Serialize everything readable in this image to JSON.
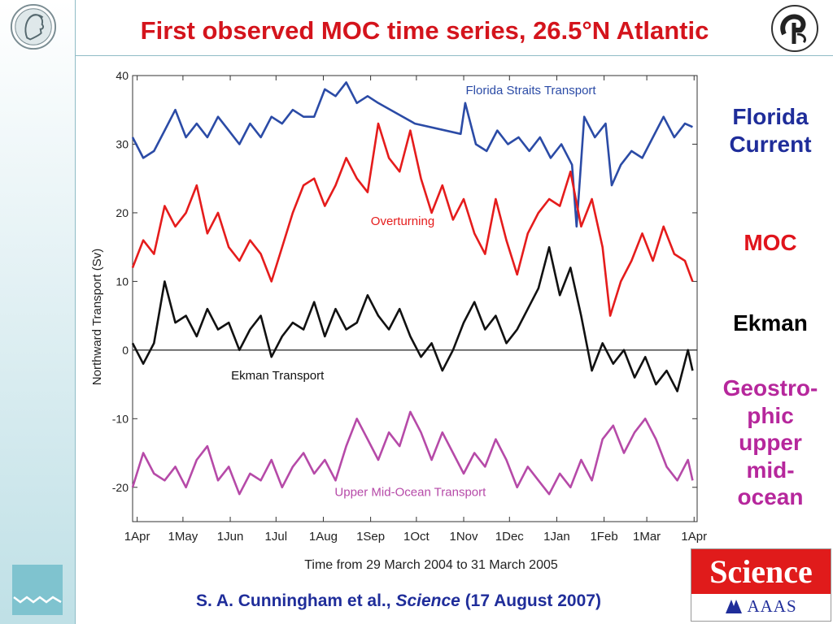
{
  "slide": {
    "title": "First observed MOC time series, 26.5°N Atlantic",
    "citation_authors": "S. A.  Cunningham et al.,",
    "citation_journal": "Science",
    "citation_date": "(17 August 2007)"
  },
  "side_labels": {
    "florida": [
      "Florida",
      "Current"
    ],
    "moc": "MOC",
    "ekman": "Ekman",
    "geostrophic": [
      "Geostro-",
      "phic",
      "upper",
      "mid-",
      "ocean"
    ]
  },
  "logos": {
    "left_top": "max-planck-minerva-logo",
    "left_bottom": "zmaw-logo",
    "right_top": "dfg-logo",
    "science_word": "Science",
    "aaas_word": "AAAS"
  },
  "colors": {
    "title": "#d4141c",
    "florida": "#2b4ba6",
    "moc": "#e51c1c",
    "ekman": "#111111",
    "geostrophic": "#b64aa8",
    "navy": "#1f2d9a"
  },
  "chart_data": {
    "type": "line",
    "xlabel": "Time from 29 March 2004 to 31 March 2005",
    "ylabel": "Northward Transport (Sv)",
    "ylim": [
      -25,
      40
    ],
    "yticks": [
      40,
      30,
      20,
      10,
      0,
      -10,
      -20
    ],
    "xlim": [
      "2004-03-29",
      "2005-04-03"
    ],
    "xticks": [
      {
        "date": "2004-04-01",
        "label": "1Apr"
      },
      {
        "date": "2004-05-01",
        "label": "1May"
      },
      {
        "date": "2004-06-01",
        "label": "1Jun"
      },
      {
        "date": "2004-07-01",
        "label": "1Jul"
      },
      {
        "date": "2004-08-01",
        "label": "1Aug"
      },
      {
        "date": "2004-09-01",
        "label": "1Sep"
      },
      {
        "date": "2004-10-01",
        "label": "1Oct"
      },
      {
        "date": "2004-11-01",
        "label": "1Nov"
      },
      {
        "date": "2004-12-01",
        "label": "1Dec"
      },
      {
        "date": "2005-01-01",
        "label": "1Jan"
      },
      {
        "date": "2005-02-01",
        "label": "1Feb"
      },
      {
        "date": "2005-03-01",
        "label": "1Mar"
      },
      {
        "date": "2005-04-01",
        "label": "1Apr"
      }
    ],
    "zero_line": true,
    "series": [
      {
        "name": "Florida Straits Transport",
        "color": "#2b4ba6",
        "points": [
          [
            "2004-03-29",
            31
          ],
          [
            "2004-04-05",
            28
          ],
          [
            "2004-04-12",
            29
          ],
          [
            "2004-04-19",
            32
          ],
          [
            "2004-04-26",
            35
          ],
          [
            "2004-05-03",
            31
          ],
          [
            "2004-05-10",
            33
          ],
          [
            "2004-05-17",
            31
          ],
          [
            "2004-05-24",
            34
          ],
          [
            "2004-05-31",
            32
          ],
          [
            "2004-06-07",
            30
          ],
          [
            "2004-06-14",
            33
          ],
          [
            "2004-06-21",
            31
          ],
          [
            "2004-06-28",
            34
          ],
          [
            "2004-07-05",
            33
          ],
          [
            "2004-07-12",
            35
          ],
          [
            "2004-07-19",
            34
          ],
          [
            "2004-07-26",
            34
          ],
          [
            "2004-08-02",
            38
          ],
          [
            "2004-08-09",
            37
          ],
          [
            "2004-08-16",
            39
          ],
          [
            "2004-08-23",
            36
          ],
          [
            "2004-08-30",
            37
          ],
          [
            "2004-09-06",
            36
          ],
          [
            "2004-09-30",
            33
          ],
          [
            "2004-10-30",
            31.5
          ],
          [
            "2004-11-02",
            36
          ],
          [
            "2004-11-09",
            30
          ],
          [
            "2004-11-16",
            29
          ],
          [
            "2004-11-23",
            32
          ],
          [
            "2004-11-30",
            30
          ],
          [
            "2004-12-07",
            31
          ],
          [
            "2004-12-14",
            29
          ],
          [
            "2004-12-21",
            31
          ],
          [
            "2004-12-28",
            28
          ],
          [
            "2005-01-04",
            30
          ],
          [
            "2005-01-11",
            27
          ],
          [
            "2005-01-14",
            18
          ],
          [
            "2005-01-19",
            34
          ],
          [
            "2005-01-26",
            31
          ],
          [
            "2005-02-02",
            33
          ],
          [
            "2005-02-06",
            24
          ],
          [
            "2005-02-12",
            27
          ],
          [
            "2005-02-19",
            29
          ],
          [
            "2005-02-26",
            28
          ],
          [
            "2005-03-05",
            31
          ],
          [
            "2005-03-12",
            34
          ],
          [
            "2005-03-19",
            31
          ],
          [
            "2005-03-26",
            33
          ],
          [
            "2005-03-31",
            32.5
          ]
        ]
      },
      {
        "name": "Overturning",
        "color": "#e51c1c",
        "points": [
          [
            "2004-03-29",
            12
          ],
          [
            "2004-04-05",
            16
          ],
          [
            "2004-04-12",
            14
          ],
          [
            "2004-04-19",
            21
          ],
          [
            "2004-04-26",
            18
          ],
          [
            "2004-05-03",
            20
          ],
          [
            "2004-05-10",
            24
          ],
          [
            "2004-05-17",
            17
          ],
          [
            "2004-05-24",
            20
          ],
          [
            "2004-05-31",
            15
          ],
          [
            "2004-06-07",
            13
          ],
          [
            "2004-06-14",
            16
          ],
          [
            "2004-06-21",
            14
          ],
          [
            "2004-06-28",
            10
          ],
          [
            "2004-07-05",
            15
          ],
          [
            "2004-07-12",
            20
          ],
          [
            "2004-07-19",
            24
          ],
          [
            "2004-07-26",
            25
          ],
          [
            "2004-08-02",
            21
          ],
          [
            "2004-08-09",
            24
          ],
          [
            "2004-08-16",
            28
          ],
          [
            "2004-08-23",
            25
          ],
          [
            "2004-08-30",
            23
          ],
          [
            "2004-09-06",
            33
          ],
          [
            "2004-09-13",
            28
          ],
          [
            "2004-09-20",
            26
          ],
          [
            "2004-09-27",
            32
          ],
          [
            "2004-10-04",
            25
          ],
          [
            "2004-10-11",
            20
          ],
          [
            "2004-10-18",
            24
          ],
          [
            "2004-10-25",
            19
          ],
          [
            "2004-11-01",
            22
          ],
          [
            "2004-11-08",
            17
          ],
          [
            "2004-11-15",
            14
          ],
          [
            "2004-11-22",
            22
          ],
          [
            "2004-11-29",
            16
          ],
          [
            "2004-12-06",
            11
          ],
          [
            "2004-12-13",
            17
          ],
          [
            "2004-12-20",
            20
          ],
          [
            "2004-12-27",
            22
          ],
          [
            "2005-01-03",
            21
          ],
          [
            "2005-01-10",
            26
          ],
          [
            "2005-01-17",
            18
          ],
          [
            "2005-01-24",
            22
          ],
          [
            "2005-01-31",
            15
          ],
          [
            "2005-02-05",
            5
          ],
          [
            "2005-02-12",
            10
          ],
          [
            "2005-02-19",
            13
          ],
          [
            "2005-02-26",
            17
          ],
          [
            "2005-03-05",
            13
          ],
          [
            "2005-03-12",
            18
          ],
          [
            "2005-03-19",
            14
          ],
          [
            "2005-03-26",
            13
          ],
          [
            "2005-03-31",
            10
          ]
        ]
      },
      {
        "name": "Ekman Transport",
        "color": "#111111",
        "points": [
          [
            "2004-03-29",
            1
          ],
          [
            "2004-04-05",
            -2
          ],
          [
            "2004-04-12",
            1
          ],
          [
            "2004-04-19",
            10
          ],
          [
            "2004-04-26",
            4
          ],
          [
            "2004-05-03",
            5
          ],
          [
            "2004-05-10",
            2
          ],
          [
            "2004-05-17",
            6
          ],
          [
            "2004-05-24",
            3
          ],
          [
            "2004-05-31",
            4
          ],
          [
            "2004-06-07",
            0
          ],
          [
            "2004-06-14",
            3
          ],
          [
            "2004-06-21",
            5
          ],
          [
            "2004-06-28",
            -1
          ],
          [
            "2004-07-05",
            2
          ],
          [
            "2004-07-12",
            4
          ],
          [
            "2004-07-19",
            3
          ],
          [
            "2004-07-26",
            7
          ],
          [
            "2004-08-02",
            2
          ],
          [
            "2004-08-09",
            6
          ],
          [
            "2004-08-16",
            3
          ],
          [
            "2004-08-23",
            4
          ],
          [
            "2004-08-30",
            8
          ],
          [
            "2004-09-06",
            5
          ],
          [
            "2004-09-13",
            3
          ],
          [
            "2004-09-20",
            6
          ],
          [
            "2004-09-27",
            2
          ],
          [
            "2004-10-04",
            -1
          ],
          [
            "2004-10-11",
            1
          ],
          [
            "2004-10-18",
            -3
          ],
          [
            "2004-10-25",
            0
          ],
          [
            "2004-11-01",
            4
          ],
          [
            "2004-11-08",
            7
          ],
          [
            "2004-11-15",
            3
          ],
          [
            "2004-11-22",
            5
          ],
          [
            "2004-11-29",
            1
          ],
          [
            "2004-12-06",
            3
          ],
          [
            "2004-12-13",
            6
          ],
          [
            "2004-12-20",
            9
          ],
          [
            "2004-12-27",
            15
          ],
          [
            "2005-01-03",
            8
          ],
          [
            "2005-01-10",
            12
          ],
          [
            "2005-01-17",
            5
          ],
          [
            "2005-01-24",
            -3
          ],
          [
            "2005-01-31",
            1
          ],
          [
            "2005-02-07",
            -2
          ],
          [
            "2005-02-14",
            0
          ],
          [
            "2005-02-21",
            -4
          ],
          [
            "2005-02-28",
            -1
          ],
          [
            "2005-03-07",
            -5
          ],
          [
            "2005-03-14",
            -3
          ],
          [
            "2005-03-21",
            -6
          ],
          [
            "2005-03-28",
            0
          ],
          [
            "2005-03-31",
            -3
          ]
        ]
      },
      {
        "name": "Upper Mid-Ocean Transport",
        "color": "#b64aa8",
        "points": [
          [
            "2004-03-29",
            -20
          ],
          [
            "2004-04-05",
            -15
          ],
          [
            "2004-04-12",
            -18
          ],
          [
            "2004-04-19",
            -19
          ],
          [
            "2004-04-26",
            -17
          ],
          [
            "2004-05-03",
            -20
          ],
          [
            "2004-05-10",
            -16
          ],
          [
            "2004-05-17",
            -14
          ],
          [
            "2004-05-24",
            -19
          ],
          [
            "2004-05-31",
            -17
          ],
          [
            "2004-06-07",
            -21
          ],
          [
            "2004-06-14",
            -18
          ],
          [
            "2004-06-21",
            -19
          ],
          [
            "2004-06-28",
            -16
          ],
          [
            "2004-07-05",
            -20
          ],
          [
            "2004-07-12",
            -17
          ],
          [
            "2004-07-19",
            -15
          ],
          [
            "2004-07-26",
            -18
          ],
          [
            "2004-08-02",
            -16
          ],
          [
            "2004-08-09",
            -19
          ],
          [
            "2004-08-16",
            -14
          ],
          [
            "2004-08-23",
            -10
          ],
          [
            "2004-08-30",
            -13
          ],
          [
            "2004-09-06",
            -16
          ],
          [
            "2004-09-13",
            -12
          ],
          [
            "2004-09-20",
            -14
          ],
          [
            "2004-09-27",
            -9
          ],
          [
            "2004-10-04",
            -12
          ],
          [
            "2004-10-11",
            -16
          ],
          [
            "2004-10-18",
            -12
          ],
          [
            "2004-10-25",
            -15
          ],
          [
            "2004-11-01",
            -18
          ],
          [
            "2004-11-08",
            -15
          ],
          [
            "2004-11-15",
            -17
          ],
          [
            "2004-11-22",
            -13
          ],
          [
            "2004-11-29",
            -16
          ],
          [
            "2004-12-06",
            -20
          ],
          [
            "2004-12-13",
            -17
          ],
          [
            "2004-12-20",
            -19
          ],
          [
            "2004-12-27",
            -21
          ],
          [
            "2005-01-03",
            -18
          ],
          [
            "2005-01-10",
            -20
          ],
          [
            "2005-01-17",
            -16
          ],
          [
            "2005-01-24",
            -19
          ],
          [
            "2005-01-31",
            -13
          ],
          [
            "2005-02-07",
            -11
          ],
          [
            "2005-02-14",
            -15
          ],
          [
            "2005-02-21",
            -12
          ],
          [
            "2005-02-28",
            -10
          ],
          [
            "2005-03-07",
            -13
          ],
          [
            "2005-03-14",
            -17
          ],
          [
            "2005-03-21",
            -19
          ],
          [
            "2005-03-28",
            -16
          ],
          [
            "2005-03-31",
            -19
          ]
        ]
      }
    ],
    "series_labels": [
      {
        "text": "Florida Straits Transport",
        "date": "2004-12-15",
        "y": 37.3,
        "color": "#2b4ba6"
      },
      {
        "text": "Overturning",
        "date": "2004-09-22",
        "y": 18.2,
        "color": "#e51c1c"
      },
      {
        "text": "Ekman Transport",
        "date": "2004-07-02",
        "y": -4.3,
        "color": "#111111"
      },
      {
        "text": "Upper Mid-Ocean Transport",
        "date": "2004-09-27",
        "y": -21.3,
        "color": "#b64aa8"
      }
    ]
  }
}
